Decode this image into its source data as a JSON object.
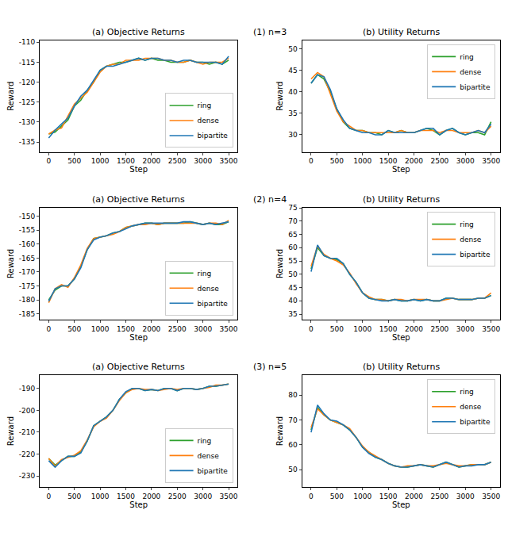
{
  "chart_data": [
    {
      "type": "line",
      "title": "(a) Objective Returns",
      "annotations": [
        "(1) n=3"
      ],
      "x_label": "Step",
      "y_label": "Reward",
      "x": [
        0,
        125,
        250,
        375,
        500,
        625,
        750,
        875,
        1000,
        1125,
        1250,
        1375,
        1500,
        1625,
        1750,
        1875,
        2000,
        2125,
        2250,
        2375,
        2500,
        2625,
        2750,
        2875,
        3000,
        3125,
        3250,
        3375,
        3500
      ],
      "xlim": [
        -175,
        3675
      ],
      "xticks": [
        0,
        500,
        1000,
        1500,
        2000,
        2500,
        3000,
        3500
      ],
      "ylim": [
        -137.5,
        -109.5
      ],
      "yticks": [
        -135,
        -130,
        -125,
        -120,
        -115,
        -110
      ],
      "legend": "lower right",
      "grid": false,
      "series": [
        {
          "name": "ring",
          "color": "#2ca02c",
          "values": [
            -133,
            -132.5,
            -131,
            -129.5,
            -126,
            -124.5,
            -122,
            -120,
            -117,
            -116,
            -115.5,
            -115,
            -115,
            -114.5,
            -114,
            -114.5,
            -114,
            -114.5,
            -114.5,
            -115,
            -115,
            -115,
            -114.5,
            -115,
            -115,
            -115.5,
            -115,
            -115.5,
            -114.5
          ]
        },
        {
          "name": "dense",
          "color": "#ff7f0e",
          "values": [
            -133,
            -132,
            -131.5,
            -128.5,
            -125.5,
            -124,
            -122.5,
            -120,
            -117.5,
            -116,
            -115.5,
            -115.5,
            -114.5,
            -114.5,
            -114.5,
            -114,
            -114,
            -114,
            -114.5,
            -114.5,
            -115,
            -115,
            -114.5,
            -115,
            -115.5,
            -115,
            -115,
            -115,
            -114
          ]
        },
        {
          "name": "bipartite",
          "color": "#1f77b4",
          "values": [
            -134,
            -132,
            -130.5,
            -129,
            -126,
            -123.5,
            -122,
            -119.5,
            -117,
            -116,
            -116,
            -115.5,
            -115,
            -114.5,
            -114,
            -114.5,
            -114,
            -114,
            -114.5,
            -114.5,
            -115,
            -114.5,
            -114.5,
            -115,
            -115,
            -115,
            -115,
            -115.5,
            -113.5
          ]
        }
      ]
    },
    {
      "type": "line",
      "title": "(b) Utility Returns",
      "x_label": "Step",
      "y_label": "Reward",
      "x": [
        0,
        125,
        250,
        375,
        500,
        625,
        750,
        875,
        1000,
        1125,
        1250,
        1375,
        1500,
        1625,
        1750,
        1875,
        2000,
        2125,
        2250,
        2375,
        2500,
        2625,
        2750,
        2875,
        3000,
        3125,
        3250,
        3375,
        3500
      ],
      "xlim": [
        -175,
        3675
      ],
      "xticks": [
        0,
        500,
        1000,
        1500,
        2000,
        2500,
        3000,
        3500
      ],
      "ylim": [
        26,
        52
      ],
      "yticks": [
        30,
        35,
        40,
        45,
        50
      ],
      "legend": "upper right",
      "grid": false,
      "series": [
        {
          "name": "ring",
          "color": "#2ca02c",
          "values": [
            42,
            44,
            43,
            40,
            36,
            33,
            31.5,
            31,
            31,
            30.5,
            30.5,
            30,
            31,
            30.5,
            31,
            30.5,
            30.5,
            31,
            31.5,
            31,
            30,
            31,
            31.5,
            30.5,
            30,
            30.5,
            30.5,
            30,
            33
          ]
        },
        {
          "name": "dense",
          "color": "#ff7f0e",
          "values": [
            43,
            44.5,
            43.5,
            39.5,
            35.5,
            33,
            32,
            31,
            31,
            30.5,
            30.5,
            30.5,
            30.5,
            30.5,
            31,
            30.5,
            30.5,
            31,
            31,
            31,
            30.5,
            31,
            31,
            30.5,
            30.5,
            30.5,
            31,
            30.5,
            32
          ]
        },
        {
          "name": "bipartite",
          "color": "#1f77b4",
          "values": [
            42,
            44,
            43.5,
            40.5,
            36,
            33.5,
            31.5,
            31,
            30.5,
            30.5,
            30,
            30,
            31,
            30.5,
            30.5,
            30.5,
            30.5,
            31,
            31.5,
            31.5,
            30,
            31,
            31.5,
            30.5,
            30,
            30.5,
            31,
            30.5,
            32.5
          ]
        }
      ]
    },
    {
      "type": "line",
      "title": "(a) Objective Returns",
      "annotations": [
        "(2) n=4"
      ],
      "x_label": "Step",
      "y_label": "Reward",
      "x": [
        0,
        125,
        250,
        375,
        500,
        625,
        750,
        875,
        1000,
        1125,
        1250,
        1375,
        1500,
        1625,
        1750,
        1875,
        2000,
        2125,
        2250,
        2375,
        2500,
        2625,
        2750,
        2875,
        3000,
        3125,
        3250,
        3375,
        3500
      ],
      "xlim": [
        -175,
        3675
      ],
      "xticks": [
        0,
        500,
        1000,
        1500,
        2000,
        2500,
        3000,
        3500
      ],
      "ylim": [
        -187,
        -147
      ],
      "yticks": [
        -185,
        -180,
        -175,
        -170,
        -165,
        -160,
        -155,
        -150
      ],
      "legend": "lower right",
      "grid": false,
      "series": [
        {
          "name": "ring",
          "color": "#2ca02c",
          "values": [
            -180,
            -176.5,
            -175,
            -175,
            -172.5,
            -168,
            -162,
            -158,
            -157.5,
            -157,
            -156,
            -155.5,
            -154,
            -153.5,
            -153,
            -152.5,
            -152.5,
            -153,
            -152.5,
            -152.5,
            -152.5,
            -152.5,
            -152,
            -152.5,
            -153,
            -152.5,
            -153,
            -153,
            -152
          ]
        },
        {
          "name": "dense",
          "color": "#ff7f0e",
          "values": [
            -181,
            -176,
            -174.5,
            -175.5,
            -172,
            -167.5,
            -161.5,
            -158,
            -157.5,
            -157,
            -156.5,
            -155.5,
            -154,
            -153.5,
            -153,
            -153,
            -152.5,
            -153,
            -152.5,
            -152.5,
            -152.5,
            -152.5,
            -152.5,
            -152.5,
            -153,
            -152.5,
            -152.5,
            -153,
            -151.5
          ]
        },
        {
          "name": "bipartite",
          "color": "#1f77b4",
          "values": [
            -180.5,
            -176,
            -175,
            -175,
            -172.5,
            -168.5,
            -162,
            -158.5,
            -157.5,
            -157,
            -156,
            -155.5,
            -154.5,
            -153.5,
            -153,
            -152.5,
            -152.5,
            -152.5,
            -152.5,
            -152.5,
            -152.5,
            -152,
            -152,
            -152.5,
            -153,
            -152.5,
            -153,
            -152.5,
            -152
          ]
        }
      ]
    },
    {
      "type": "line",
      "title": "(b) Utility Returns",
      "x_label": "Step",
      "y_label": "Reward",
      "x": [
        0,
        125,
        250,
        375,
        500,
        625,
        750,
        875,
        1000,
        1125,
        1250,
        1375,
        1500,
        1625,
        1750,
        1875,
        2000,
        2125,
        2250,
        2375,
        2500,
        2625,
        2750,
        2875,
        3000,
        3125,
        3250,
        3375,
        3500
      ],
      "xlim": [
        -175,
        3675
      ],
      "xticks": [
        0,
        500,
        1000,
        1500,
        2000,
        2500,
        3000,
        3500
      ],
      "ylim": [
        33,
        75
      ],
      "yticks": [
        35,
        40,
        45,
        50,
        55,
        60,
        65,
        70,
        75
      ],
      "legend": "upper right",
      "grid": false,
      "series": [
        {
          "name": "ring",
          "color": "#2ca02c",
          "values": [
            52,
            60,
            57,
            56,
            55.5,
            54,
            50,
            47,
            43,
            41,
            40.5,
            40.5,
            40,
            40.5,
            40,
            40,
            40.5,
            40,
            40.5,
            40,
            40,
            41,
            41,
            40.5,
            40.5,
            40.5,
            41,
            41,
            42
          ]
        },
        {
          "name": "dense",
          "color": "#ff7f0e",
          "values": [
            53,
            60.5,
            57.5,
            56,
            55,
            53.5,
            50.5,
            46.5,
            43,
            41.5,
            40.5,
            40.5,
            40,
            40.5,
            40.5,
            40,
            40.5,
            40.5,
            40.5,
            40,
            40,
            40.5,
            41,
            40.5,
            40.5,
            40.5,
            41,
            41,
            43
          ]
        },
        {
          "name": "bipartite",
          "color": "#1f77b4",
          "values": [
            51,
            61,
            57,
            56,
            56,
            54,
            50,
            47,
            43,
            41,
            40.5,
            40,
            40,
            40.5,
            40,
            40,
            40.5,
            40,
            40.5,
            40,
            40,
            41,
            41,
            40.5,
            40.5,
            40.5,
            41,
            41,
            42
          ]
        }
      ]
    },
    {
      "type": "line",
      "title": "(a) Objective Returns",
      "annotations": [
        "(3) n=5"
      ],
      "x_label": "Step",
      "y_label": "Reward",
      "x": [
        0,
        125,
        250,
        375,
        500,
        625,
        750,
        875,
        1000,
        1125,
        1250,
        1375,
        1500,
        1625,
        1750,
        1875,
        2000,
        2125,
        2250,
        2375,
        2500,
        2625,
        2750,
        2875,
        3000,
        3125,
        3250,
        3375,
        3500
      ],
      "xlim": [
        -175,
        3675
      ],
      "xticks": [
        0,
        500,
        1000,
        1500,
        2000,
        2500,
        3000,
        3500
      ],
      "ylim": [
        -235,
        -184
      ],
      "yticks": [
        -230,
        -220,
        -210,
        -200,
        -190
      ],
      "legend": "lower right",
      "grid": false,
      "series": [
        {
          "name": "ring",
          "color": "#2ca02c",
          "values": [
            -222,
            -225,
            -223,
            -221,
            -221,
            -219,
            -214,
            -207,
            -205,
            -203,
            -200,
            -195,
            -192,
            -190,
            -190,
            -191,
            -190.5,
            -191,
            -190,
            -190,
            -191,
            -190,
            -190,
            -190.5,
            -190,
            -189,
            -189,
            -188.5,
            -188
          ]
        },
        {
          "name": "dense",
          "color": "#ff7f0e",
          "values": [
            -222,
            -225.5,
            -222.5,
            -221.5,
            -220.5,
            -218.5,
            -213.5,
            -207.5,
            -205,
            -203.5,
            -200,
            -195.5,
            -192,
            -190.5,
            -190,
            -190.5,
            -190.5,
            -191,
            -190.5,
            -190,
            -190.5,
            -190,
            -190,
            -190.5,
            -190,
            -189.5,
            -188.5,
            -188.5,
            -188
          ]
        },
        {
          "name": "bipartite",
          "color": "#1f77b4",
          "values": [
            -223,
            -226,
            -223,
            -221,
            -221,
            -219.5,
            -214,
            -207,
            -205,
            -203,
            -200,
            -195,
            -191.5,
            -190,
            -190,
            -191,
            -190.5,
            -191,
            -190,
            -190,
            -191,
            -190,
            -190,
            -190.5,
            -190,
            -189,
            -189,
            -188.5,
            -188
          ]
        }
      ]
    },
    {
      "type": "line",
      "title": "(b) Utility Returns",
      "x_label": "Step",
      "y_label": "Reward",
      "x": [
        0,
        125,
        250,
        375,
        500,
        625,
        750,
        875,
        1000,
        1125,
        1250,
        1375,
        1500,
        1625,
        1750,
        1875,
        2000,
        2125,
        2250,
        2375,
        2500,
        2625,
        2750,
        2875,
        3000,
        3125,
        3250,
        3375,
        3500
      ],
      "xlim": [
        -175,
        3675
      ],
      "xticks": [
        0,
        500,
        1000,
        1500,
        2000,
        2500,
        3000,
        3500
      ],
      "ylim": [
        43,
        88
      ],
      "yticks": [
        50,
        60,
        70,
        80
      ],
      "legend": "upper right",
      "grid": false,
      "series": [
        {
          "name": "ring",
          "color": "#2ca02c",
          "values": [
            66,
            75,
            72,
            70,
            69,
            68,
            66,
            63,
            59,
            57,
            55,
            54,
            52.5,
            51.5,
            51,
            51,
            51.5,
            52,
            51.5,
            51,
            52,
            53,
            52,
            51,
            51.5,
            52,
            52,
            52,
            53
          ]
        },
        {
          "name": "dense",
          "color": "#ff7f0e",
          "values": [
            67,
            74.5,
            72,
            70,
            69,
            68,
            66.5,
            63,
            59.5,
            57,
            55.5,
            54,
            52.5,
            51.5,
            51,
            51.5,
            51.5,
            52,
            51.5,
            51.5,
            52,
            52.5,
            52,
            51.5,
            51.5,
            52,
            52,
            52,
            53
          ]
        },
        {
          "name": "bipartite",
          "color": "#1f77b4",
          "values": [
            65,
            76,
            72.5,
            70,
            69.5,
            68,
            66,
            63,
            59,
            56.5,
            55,
            54,
            52.5,
            51.5,
            51,
            51,
            51.5,
            52,
            51.5,
            51,
            52,
            53,
            52,
            51,
            51.5,
            51.5,
            52,
            52,
            53
          ]
        }
      ]
    }
  ]
}
